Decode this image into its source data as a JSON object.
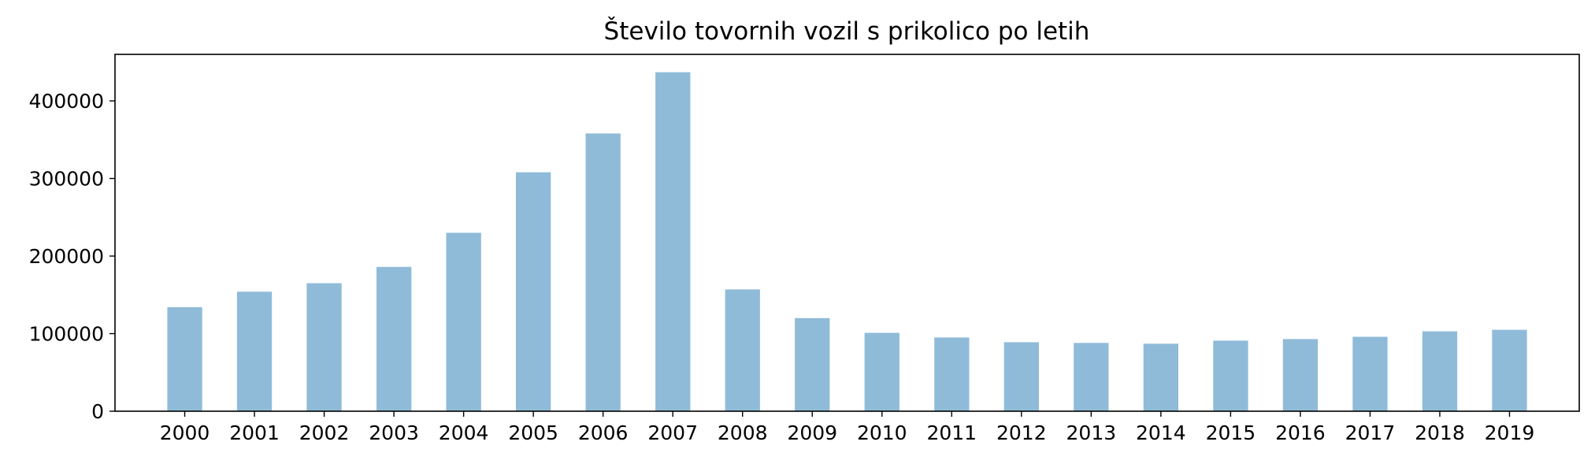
{
  "chart_data": {
    "type": "bar",
    "title": "Število tovornih vozil s prikolico po letih",
    "xlabel": "",
    "ylabel": "",
    "categories": [
      "2000",
      "2001",
      "2002",
      "2003",
      "2004",
      "2005",
      "2006",
      "2007",
      "2008",
      "2009",
      "2010",
      "2011",
      "2012",
      "2013",
      "2014",
      "2015",
      "2016",
      "2017",
      "2018",
      "2019"
    ],
    "values": [
      134000,
      154000,
      165000,
      186000,
      230000,
      308000,
      358000,
      437000,
      157000,
      120000,
      101000,
      95000,
      89000,
      88000,
      87000,
      91000,
      93000,
      96000,
      103000,
      105000
    ],
    "ylim": [
      0,
      460000
    ],
    "yticks": [
      0,
      100000,
      200000,
      300000,
      400000
    ],
    "ytick_labels": [
      "0",
      "100000",
      "200000",
      "300000",
      "400000"
    ],
    "grid": false,
    "bar_color": "#1f77b4",
    "bar_alpha": 0.5
  }
}
